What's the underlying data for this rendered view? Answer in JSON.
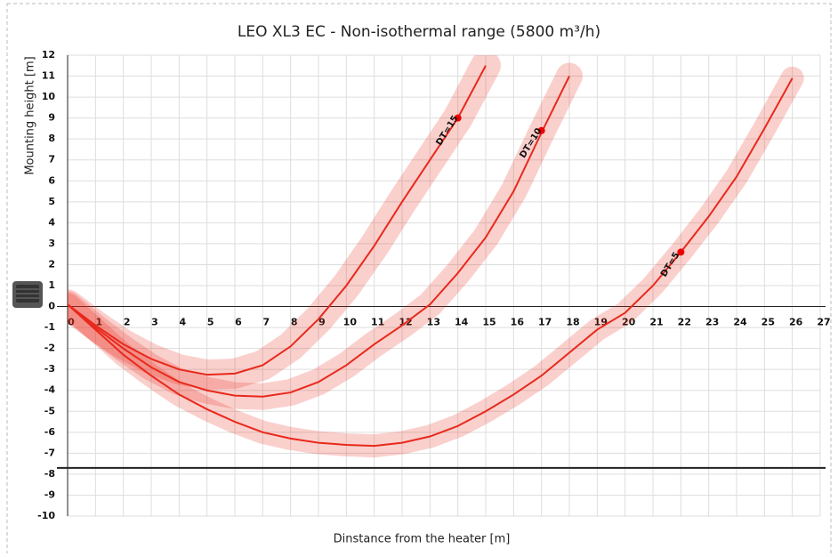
{
  "chart_data": {
    "type": "line",
    "title": "LEO XL3 EC - Non-isothermal range (5800 m³/h)",
    "x_label": "Dinstance from the heater [m]",
    "y_label": "Mounting height [m]",
    "xlim": [
      0,
      27
    ],
    "ylim": [
      -10,
      12
    ],
    "xticks": [
      0,
      1,
      2,
      3,
      4,
      5,
      6,
      7,
      8,
      9,
      10,
      11,
      12,
      13,
      14,
      15,
      16,
      17,
      18,
      19,
      20,
      21,
      22,
      23,
      24,
      25,
      26,
      27
    ],
    "yticks": [
      12,
      11,
      10,
      9,
      8,
      7,
      6,
      5,
      4,
      3,
      2,
      1,
      0,
      -1,
      -2,
      -3,
      -4,
      -5,
      -6,
      -7,
      -8,
      -9,
      -10
    ],
    "grid": true,
    "reference_line": -7.7,
    "series": [
      {
        "name": "DT=15",
        "color": "#e8291c",
        "x": [
          0,
          1,
          2,
          3,
          4,
          5,
          6,
          7,
          8,
          9,
          10,
          11,
          12,
          13,
          14,
          15
        ],
        "values": [
          0.1,
          -0.9,
          -1.8,
          -2.5,
          -3.0,
          -3.25,
          -3.2,
          -2.8,
          -1.9,
          -0.6,
          1.0,
          2.9,
          5.0,
          7.0,
          9.0,
          11.5
        ],
        "marker": {
          "x": 14,
          "y": 9.0
        }
      },
      {
        "name": "DT=10",
        "color": "#e8291c",
        "x": [
          0,
          1,
          2,
          3,
          4,
          5,
          6,
          7,
          8,
          9,
          10,
          11,
          12,
          13,
          14,
          15,
          16,
          17,
          18
        ],
        "values": [
          0.1,
          -1.0,
          -2.0,
          -2.9,
          -3.6,
          -4.0,
          -4.25,
          -4.3,
          -4.1,
          -3.6,
          -2.8,
          -1.8,
          -0.9,
          0.1,
          1.6,
          3.3,
          5.5,
          8.3,
          11.0
        ],
        "marker": {
          "x": 17,
          "y": 8.4
        }
      },
      {
        "name": "DT=5",
        "color": "#e8291c",
        "x": [
          0,
          1,
          2,
          3,
          4,
          5,
          6,
          7,
          8,
          9,
          10,
          11,
          12,
          13,
          14,
          15,
          16,
          17,
          18,
          19,
          20,
          21,
          22,
          23,
          24,
          25,
          26
        ],
        "values": [
          0.1,
          -1.1,
          -2.3,
          -3.3,
          -4.2,
          -4.9,
          -5.5,
          -6.0,
          -6.3,
          -6.5,
          -6.6,
          -6.65,
          -6.5,
          -6.2,
          -5.7,
          -5.0,
          -4.2,
          -3.3,
          -2.2,
          -1.1,
          -0.3,
          1.0,
          2.6,
          4.3,
          6.2,
          8.5,
          10.9
        ],
        "marker": {
          "x": 22,
          "y": 2.6
        }
      }
    ]
  }
}
